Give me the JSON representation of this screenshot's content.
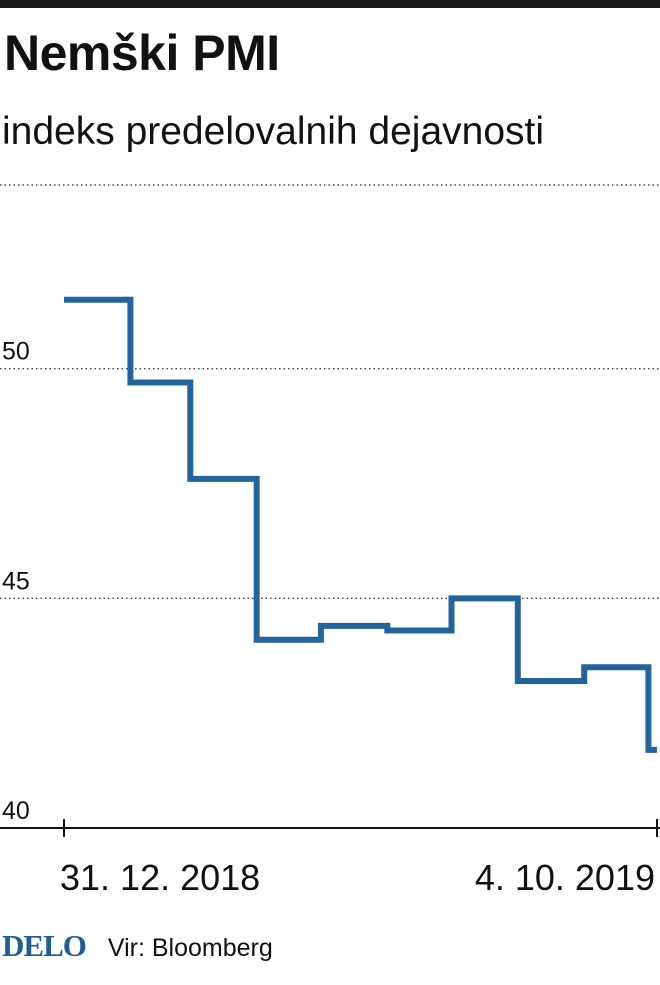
{
  "title": "Nemški PMI",
  "subtitle": "indeks predelovalnih dejavnosti",
  "chart_data": {
    "type": "line",
    "step": true,
    "line_color": "#24649c",
    "x": [
      "2018-12-31",
      "2019-01-31",
      "2019-02-28",
      "2019-03-31",
      "2019-04-30",
      "2019-05-31",
      "2019-06-30",
      "2019-07-31",
      "2019-08-31",
      "2019-09-30",
      "2019-10-04"
    ],
    "series": [
      {
        "values": [
          51.5,
          49.7,
          47.6,
          44.1,
          44.4,
          44.3,
          45.0,
          43.2,
          43.5,
          41.7,
          41.7
        ]
      }
    ],
    "ylim": [
      40,
      54
    ],
    "yticks": [
      "50",
      "45",
      "40"
    ],
    "xtick_labels": [
      "31. 12. 2018",
      "4. 10. 2019"
    ],
    "grid": "horizontal dotted"
  },
  "footer": {
    "logo": "DELO",
    "source": "Vir: Bloomberg"
  }
}
